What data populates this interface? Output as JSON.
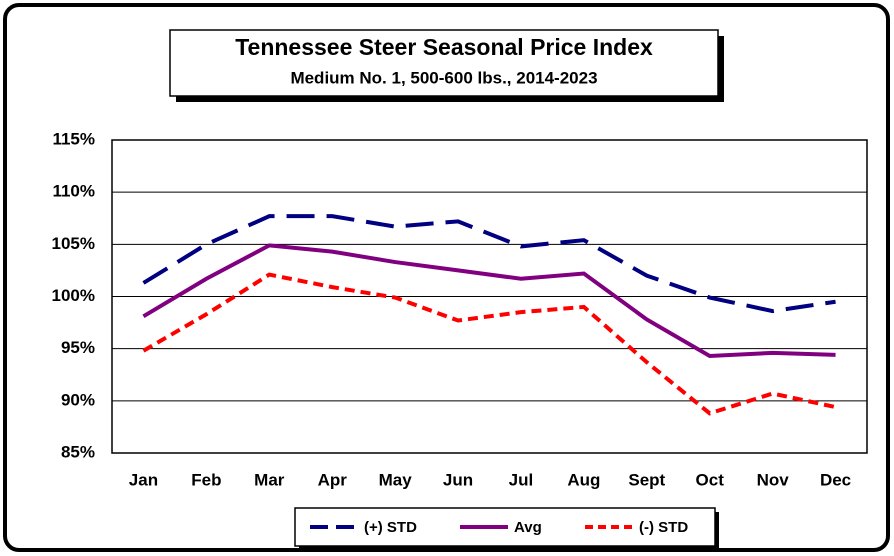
{
  "chart_data": {
    "type": "line",
    "title": "Tennessee Steer Seasonal Price Index",
    "subtitle": "Medium No. 1, 500-600 lbs., 2014-2023",
    "categories": [
      "Jan",
      "Feb",
      "Mar",
      "Apr",
      "May",
      "Jun",
      "Jul",
      "Aug",
      "Sept",
      "Oct",
      "Nov",
      "Dec"
    ],
    "series": [
      {
        "name": "(+) STD",
        "color": "#000080",
        "dash": "28,12",
        "values": [
          101.3,
          105.0,
          107.7,
          107.7,
          106.7,
          107.2,
          104.8,
          105.4,
          102.0,
          99.9,
          98.6,
          99.5
        ]
      },
      {
        "name": "Avg",
        "color": "#800080",
        "dash": null,
        "values": [
          98.1,
          101.7,
          104.9,
          104.3,
          103.3,
          102.5,
          101.7,
          102.2,
          97.8,
          94.3,
          94.6,
          94.4
        ]
      },
      {
        "name": "(-) STD",
        "color": "#ff0000",
        "dash": "10,6",
        "values": [
          94.8,
          98.3,
          102.1,
          100.9,
          99.9,
          97.7,
          98.5,
          99.0,
          93.7,
          88.8,
          90.7,
          89.4
        ]
      }
    ],
    "ylim": [
      85,
      115
    ],
    "yticks": [
      {
        "value": 85,
        "label": "85%"
      },
      {
        "value": 90,
        "label": "90%"
      },
      {
        "value": 95,
        "label": "95%"
      },
      {
        "value": 100,
        "label": "100%"
      },
      {
        "value": 105,
        "label": "105%"
      },
      {
        "value": 110,
        "label": "110%"
      },
      {
        "value": 115,
        "label": "115%"
      }
    ],
    "grid": true,
    "legend": "bottom"
  }
}
